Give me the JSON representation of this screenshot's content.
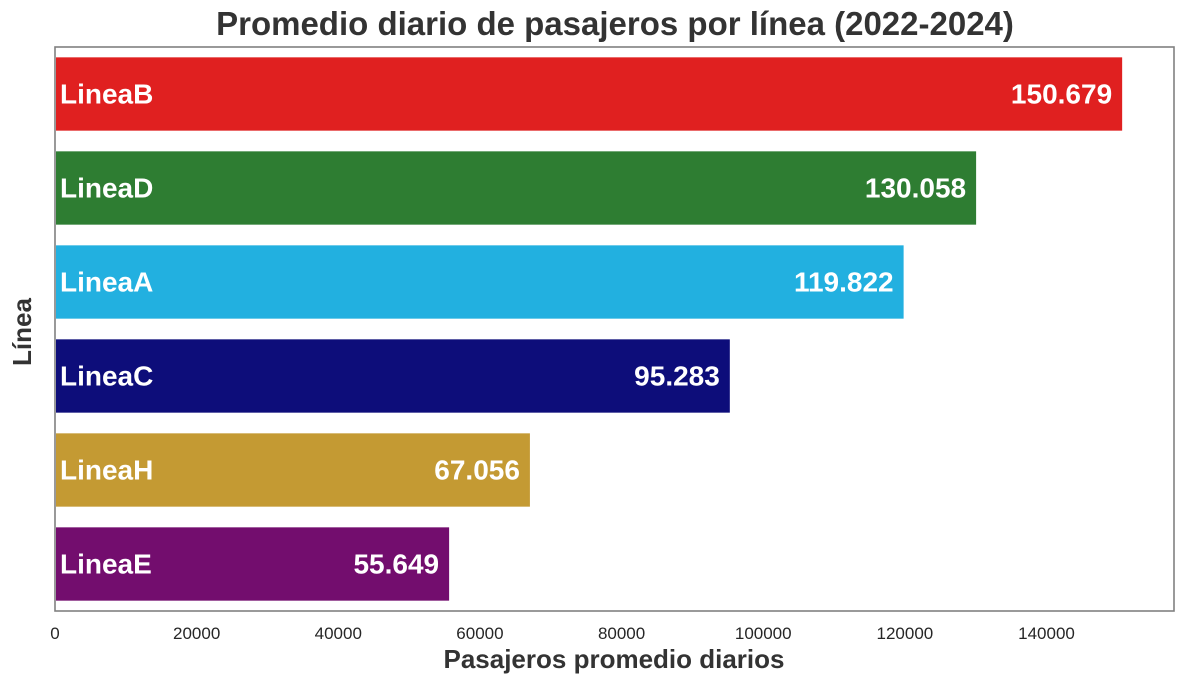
{
  "chart_data": {
    "type": "bar",
    "orientation": "horizontal",
    "title": "Promedio diario de pasajeros por línea (2022-2024)",
    "xlabel": "Pasajeros promedio diarios",
    "ylabel": "Línea",
    "xlim": [
      0,
      158000
    ],
    "xticks": [
      0,
      20000,
      40000,
      60000,
      80000,
      100000,
      120000,
      140000
    ],
    "xtick_labels": [
      "0",
      "20000",
      "40000",
      "60000",
      "80000",
      "100000",
      "120000",
      "140000"
    ],
    "grid": false,
    "categories": [
      "LineaB",
      "LineaD",
      "LineaA",
      "LineaC",
      "LineaH",
      "LineaE"
    ],
    "values": [
      150679,
      130058,
      119822,
      95283,
      67056,
      55649
    ],
    "value_labels": [
      "150.679",
      "130.058",
      "119.822",
      "95.283",
      "67.056",
      "55.649"
    ],
    "colors": [
      "#e02020",
      "#2e7d32",
      "#22b0e0",
      "#0d0d7a",
      "#c49a33",
      "#730d6e"
    ],
    "frame_color": "#808080"
  }
}
